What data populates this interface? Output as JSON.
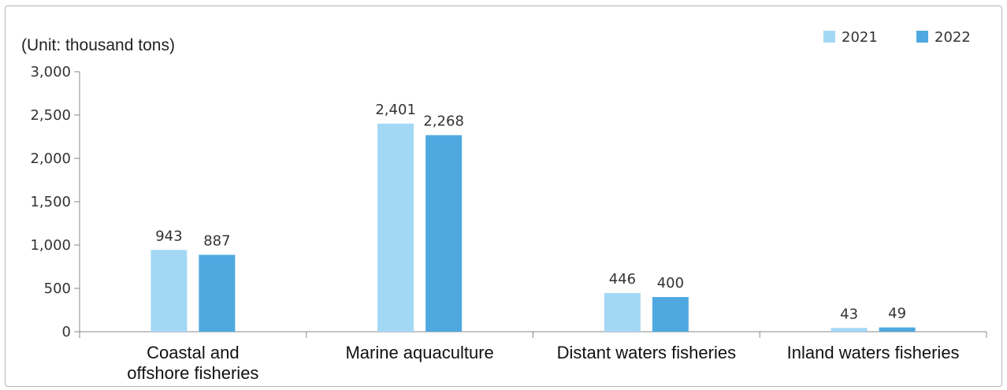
{
  "chart_data": {
    "type": "bar",
    "unit_label": "(Unit: thousand tons)",
    "categories": [
      [
        "Coastal and",
        "offshore fisheries"
      ],
      [
        "Marine aquaculture"
      ],
      [
        "Distant waters fisheries"
      ],
      [
        "Inland waters fisheries"
      ]
    ],
    "series": [
      {
        "name": "2021",
        "color": "#a3d8f5",
        "values": [
          943,
          2401,
          446,
          43
        ]
      },
      {
        "name": "2022",
        "color": "#4fa9e0",
        "values": [
          887,
          2268,
          400,
          49
        ]
      }
    ],
    "data_labels": [
      [
        "943",
        "2,401",
        "446",
        "43"
      ],
      [
        "887",
        "2,268",
        "400",
        "49"
      ]
    ],
    "y_ticks": [
      "0",
      "500",
      "1,000",
      "1,500",
      "2,000",
      "2,500",
      "3,000"
    ],
    "ylim": [
      0,
      3000
    ],
    "grid": false,
    "legend_position": "top-right"
  }
}
